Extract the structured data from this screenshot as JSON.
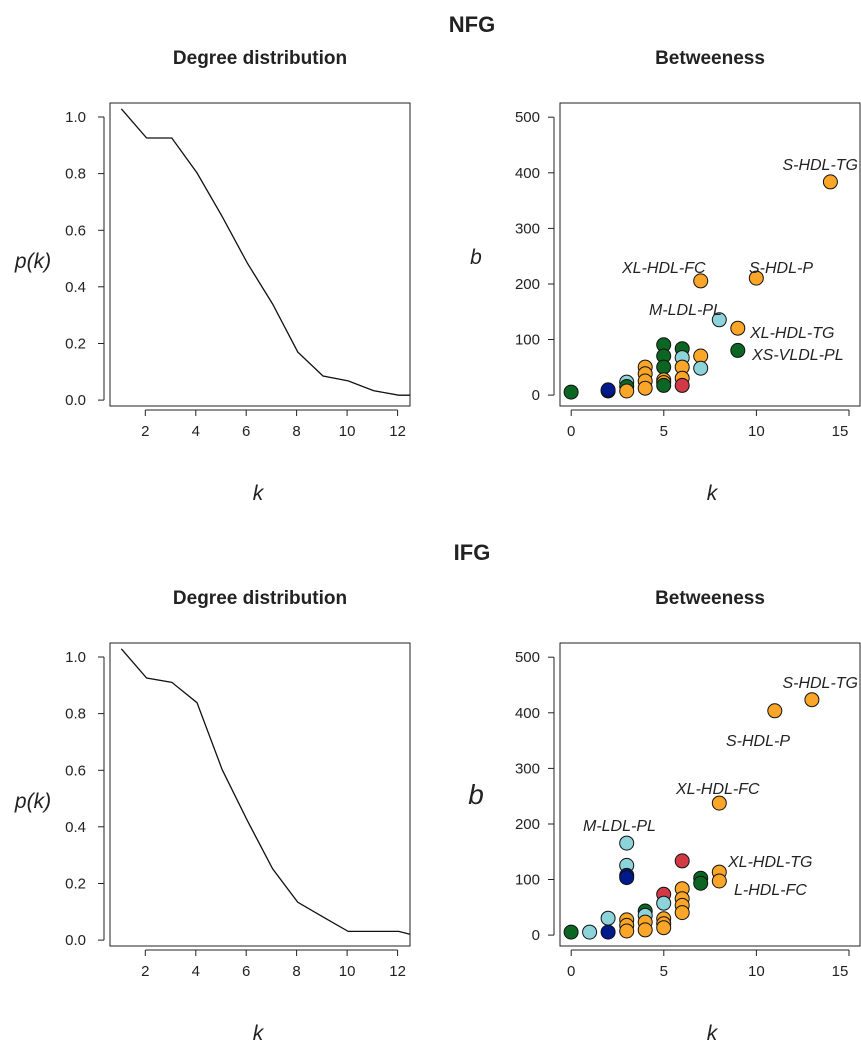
{
  "sections": [
    {
      "title": "NFG",
      "degree": {
        "title": "Degree distribution",
        "xlabel": "k",
        "ylabel": "p(k)",
        "xlim": [
          0.55,
          12.45
        ],
        "ylim": [
          -0.02,
          1.02
        ],
        "xticks": [
          "2",
          "4",
          "6",
          "8",
          "10",
          "12"
        ],
        "yticks": [
          "0.0",
          "0.2",
          "0.4",
          "0.6",
          "0.8",
          "1.0"
        ]
      },
      "betweenness": {
        "title": "Betweeness",
        "xlabel": "k",
        "ylabel": "b",
        "xlim": [
          -0.6,
          15.6
        ],
        "ylim": [
          -25,
          520
        ],
        "xticks": [
          "0",
          "5",
          "10",
          "15"
        ],
        "yticks": [
          "0",
          "100",
          "200",
          "300",
          "400",
          "500"
        ],
        "labels": [
          "S-HDL-TG",
          "XL-HDL-FC",
          "S-HDL-P",
          "M-LDL-PL",
          "XL-HDL-TG",
          "XS-VLDL-PL"
        ]
      }
    },
    {
      "title": "IFG",
      "degree": {
        "title": "Degree distribution",
        "xlabel": "k",
        "ylabel": "p(k)",
        "xlim": [
          0.55,
          12.45
        ],
        "ylim": [
          -0.02,
          1.02
        ],
        "xticks": [
          "2",
          "4",
          "6",
          "8",
          "10",
          "12"
        ],
        "yticks": [
          "0.0",
          "0.2",
          "0.4",
          "0.6",
          "0.8",
          "1.0"
        ]
      },
      "betweenness": {
        "title": "Betweeness",
        "xlabel": "k",
        "ylabel": "b",
        "xlim": [
          -0.6,
          15.6
        ],
        "ylim": [
          -25,
          520
        ],
        "xticks": [
          "0",
          "5",
          "10",
          "15"
        ],
        "yticks": [
          "0",
          "100",
          "200",
          "300",
          "400",
          "500"
        ],
        "labels": [
          "S-HDL-TG",
          "S-HDL-P",
          "XL-HDL-FC",
          "M-LDL-PL",
          "XL-HDL-TG",
          "L-HDL-FC"
        ]
      }
    }
  ],
  "colors": {
    "orange": "#FBA629",
    "cyan": "#8DD3DA",
    "green": "#0B6623",
    "navy": "#001A8C",
    "red": "#D13A45",
    "line": "#111111"
  },
  "chart_data": [
    {
      "type": "line",
      "section": "NFG",
      "title": "Degree distribution",
      "xlabel": "k",
      "ylabel": "p(k)",
      "xlim": [
        0.55,
        12.45
      ],
      "ylim": [
        -0.02,
        1.02
      ],
      "x": [
        1,
        2,
        3,
        4,
        5,
        6,
        7,
        8,
        9,
        10,
        11,
        12,
        12.45
      ],
      "y": [
        1.0,
        0.9,
        0.9,
        0.78,
        0.63,
        0.47,
        0.33,
        0.165,
        0.083,
        0.066,
        0.033,
        0.017,
        0.017
      ]
    },
    {
      "type": "scatter",
      "section": "NFG",
      "title": "Betweeness",
      "xlabel": "k",
      "ylabel": "b",
      "xlim": [
        -0.6,
        15.6
      ],
      "ylim": [
        -25,
        520
      ],
      "points": [
        {
          "x": 0,
          "y": 0,
          "color": "green"
        },
        {
          "x": 2,
          "y": 2,
          "color": "navy"
        },
        {
          "x": 2,
          "y": 4,
          "color": "navy"
        },
        {
          "x": 3,
          "y": 18,
          "color": "cyan"
        },
        {
          "x": 3,
          "y": 10,
          "color": "green"
        },
        {
          "x": 3,
          "y": 2,
          "color": "orange"
        },
        {
          "x": 4,
          "y": 45,
          "color": "orange"
        },
        {
          "x": 4,
          "y": 33,
          "color": "orange"
        },
        {
          "x": 4,
          "y": 20,
          "color": "orange"
        },
        {
          "x": 4,
          "y": 7,
          "color": "orange"
        },
        {
          "x": 5,
          "y": 85,
          "color": "green"
        },
        {
          "x": 5,
          "y": 65,
          "color": "green"
        },
        {
          "x": 5,
          "y": 45,
          "color": "green"
        },
        {
          "x": 5,
          "y": 22,
          "color": "orange"
        },
        {
          "x": 5,
          "y": 17,
          "color": "orange"
        },
        {
          "x": 5,
          "y": 12,
          "color": "green"
        },
        {
          "x": 6,
          "y": 78,
          "color": "green"
        },
        {
          "x": 6,
          "y": 62,
          "color": "cyan"
        },
        {
          "x": 6,
          "y": 45,
          "color": "orange"
        },
        {
          "x": 6,
          "y": 25,
          "color": "orange"
        },
        {
          "x": 6,
          "y": 12,
          "color": "red"
        },
        {
          "x": 7,
          "y": 65,
          "color": "orange"
        },
        {
          "x": 7,
          "y": 43,
          "color": "cyan"
        },
        {
          "x": 7,
          "y": 200,
          "color": "orange",
          "label": "XL-HDL-FC"
        },
        {
          "x": 8,
          "y": 130,
          "color": "cyan",
          "label": "M-LDL-PL"
        },
        {
          "x": 9,
          "y": 115,
          "color": "orange",
          "label": "XL-HDL-TG"
        },
        {
          "x": 9,
          "y": 75,
          "color": "green",
          "label": "XS-VLDL-PL"
        },
        {
          "x": 10,
          "y": 205,
          "color": "orange",
          "label": "S-HDL-P"
        },
        {
          "x": 14,
          "y": 378,
          "color": "orange",
          "label": "S-HDL-TG"
        }
      ]
    },
    {
      "type": "line",
      "section": "IFG",
      "title": "Degree distribution",
      "xlabel": "k",
      "ylabel": "p(k)",
      "xlim": [
        0.55,
        12.45
      ],
      "ylim": [
        -0.02,
        1.02
      ],
      "x": [
        1,
        2,
        3,
        4,
        5,
        6,
        7,
        8,
        9,
        10,
        11,
        12,
        12.45
      ],
      "y": [
        1.0,
        0.9,
        0.885,
        0.815,
        0.585,
        0.41,
        0.245,
        0.13,
        0.08,
        0.03,
        0.03,
        0.03,
        0.02
      ]
    },
    {
      "type": "scatter",
      "section": "IFG",
      "title": "Betweeness",
      "xlabel": "k",
      "ylabel": "b",
      "xlim": [
        -0.6,
        15.6
      ],
      "ylim": [
        -25,
        520
      ],
      "points": [
        {
          "x": 0,
          "y": 0,
          "color": "green"
        },
        {
          "x": 1,
          "y": 0,
          "color": "cyan"
        },
        {
          "x": 2,
          "y": 25,
          "color": "cyan"
        },
        {
          "x": 2,
          "y": 0,
          "color": "navy"
        },
        {
          "x": 3,
          "y": 160,
          "color": "cyan",
          "label": "M-LDL-PL"
        },
        {
          "x": 3,
          "y": 120,
          "color": "cyan"
        },
        {
          "x": 3,
          "y": 102,
          "color": "navy"
        },
        {
          "x": 3,
          "y": 98,
          "color": "navy"
        },
        {
          "x": 3,
          "y": 22,
          "color": "orange"
        },
        {
          "x": 3,
          "y": 12,
          "color": "orange"
        },
        {
          "x": 3,
          "y": 2,
          "color": "orange"
        },
        {
          "x": 4,
          "y": 38,
          "color": "green"
        },
        {
          "x": 4,
          "y": 30,
          "color": "cyan"
        },
        {
          "x": 4,
          "y": 18,
          "color": "orange"
        },
        {
          "x": 4,
          "y": 4,
          "color": "orange"
        },
        {
          "x": 5,
          "y": 68,
          "color": "red"
        },
        {
          "x": 5,
          "y": 52,
          "color": "cyan"
        },
        {
          "x": 5,
          "y": 24,
          "color": "orange"
        },
        {
          "x": 5,
          "y": 15,
          "color": "orange"
        },
        {
          "x": 5,
          "y": 8,
          "color": "orange"
        },
        {
          "x": 6,
          "y": 128,
          "color": "red"
        },
        {
          "x": 6,
          "y": 78,
          "color": "orange"
        },
        {
          "x": 6,
          "y": 60,
          "color": "orange"
        },
        {
          "x": 6,
          "y": 48,
          "color": "orange"
        },
        {
          "x": 6,
          "y": 35,
          "color": "orange"
        },
        {
          "x": 7,
          "y": 97,
          "color": "green"
        },
        {
          "x": 7,
          "y": 88,
          "color": "green"
        },
        {
          "x": 8,
          "y": 232,
          "color": "orange",
          "label": "XL-HDL-FC"
        },
        {
          "x": 8,
          "y": 108,
          "color": "orange",
          "label": "XL-HDL-TG"
        },
        {
          "x": 8,
          "y": 92,
          "color": "orange",
          "label": "L-HDL-FC"
        },
        {
          "x": 11,
          "y": 398,
          "color": "orange",
          "label": "S-HDL-P"
        },
        {
          "x": 13,
          "y": 418,
          "color": "orange",
          "label": "S-HDL-TG"
        }
      ]
    }
  ]
}
